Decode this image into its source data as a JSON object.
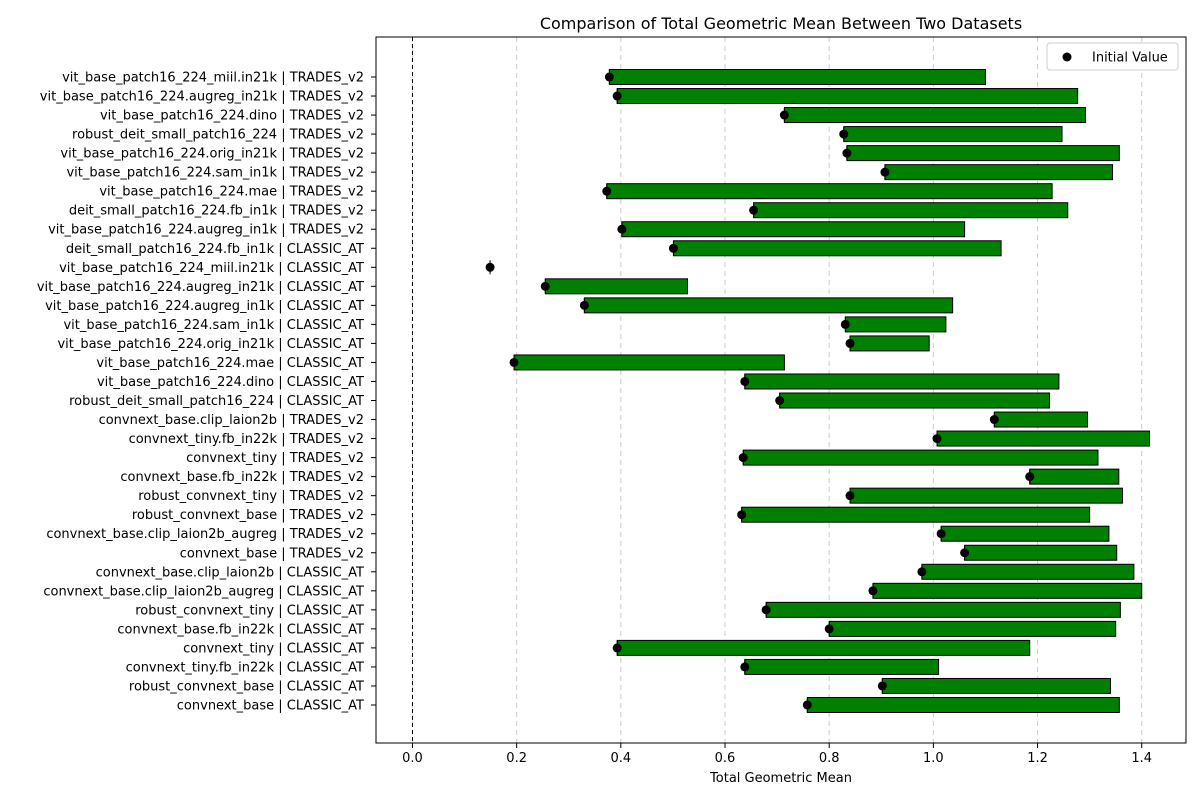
{
  "chart_data": {
    "type": "bar",
    "orientation": "horizontal",
    "title": "Comparison of Total Geometric Mean Between Two Datasets",
    "xlabel": "Total Geometric Mean",
    "ylabel": "",
    "xlim": [
      -0.07,
      1.485
    ],
    "xticks": [
      0.0,
      0.2,
      0.4,
      0.6,
      0.8,
      1.0,
      1.2,
      1.4
    ],
    "xtick_labels": [
      "0.0",
      "0.2",
      "0.4",
      "0.6",
      "0.8",
      "1.0",
      "1.2",
      "1.4"
    ],
    "grid": "x-dashed",
    "reference_line": 0.0,
    "legend": {
      "position": "top-right",
      "entries": [
        "Initial Value"
      ]
    },
    "bar_color": "#008000",
    "bar_edge_color": "#000000",
    "marker_color": "#000000",
    "categories": [
      "vit_base_patch16_224_miil.in21k | TRADES_v2",
      "vit_base_patch16_224.augreg_in21k | TRADES_v2",
      "vit_base_patch16_224.dino | TRADES_v2",
      "robust_deit_small_patch16_224 | TRADES_v2",
      "vit_base_patch16_224.orig_in21k | TRADES_v2",
      "vit_base_patch16_224.sam_in1k | TRADES_v2",
      "vit_base_patch16_224.mae | TRADES_v2",
      "deit_small_patch16_224.fb_in1k | TRADES_v2",
      "vit_base_patch16_224.augreg_in1k | TRADES_v2",
      "deit_small_patch16_224.fb_in1k | CLASSIC_AT",
      "vit_base_patch16_224_miil.in21k | CLASSIC_AT",
      "vit_base_patch16_224.augreg_in21k | CLASSIC_AT",
      "vit_base_patch16_224.augreg_in1k | CLASSIC_AT",
      "vit_base_patch16_224.sam_in1k | CLASSIC_AT",
      "vit_base_patch16_224.orig_in21k | CLASSIC_AT",
      "vit_base_patch16_224.mae | CLASSIC_AT",
      "vit_base_patch16_224.dino | CLASSIC_AT",
      "robust_deit_small_patch16_224 | CLASSIC_AT",
      "convnext_base.clip_laion2b | TRADES_v2",
      "convnext_tiny.fb_in22k | TRADES_v2",
      "convnext_tiny | TRADES_v2",
      "convnext_base.fb_in22k | TRADES_v2",
      "robust_convnext_tiny | TRADES_v2",
      "robust_convnext_base | TRADES_v2",
      "convnext_base.clip_laion2b_augreg | TRADES_v2",
      "convnext_base | TRADES_v2",
      "convnext_base.clip_laion2b | CLASSIC_AT",
      "convnext_base.clip_laion2b_augreg | CLASSIC_AT",
      "robust_convnext_tiny | CLASSIC_AT",
      "convnext_base.fb_in22k | CLASSIC_AT",
      "convnext_tiny | CLASSIC_AT",
      "convnext_tiny.fb_in22k | CLASSIC_AT",
      "robust_convnext_base | CLASSIC_AT",
      "convnext_base | CLASSIC_AT"
    ],
    "initial_values": [
      0.378,
      0.393,
      0.714,
      0.828,
      0.834,
      0.907,
      0.373,
      0.655,
      0.402,
      0.501,
      0.149,
      0.255,
      0.33,
      0.831,
      0.84,
      0.195,
      0.638,
      0.705,
      1.117,
      1.007,
      0.635,
      1.185,
      0.84,
      0.632,
      1.015,
      1.06,
      0.978,
      0.884,
      0.679,
      0.8,
      0.393,
      0.638,
      0.902,
      0.758
    ],
    "final_values": [
      1.1,
      1.277,
      1.292,
      1.247,
      1.357,
      1.344,
      1.228,
      1.258,
      1.06,
      1.13,
      0.149,
      0.528,
      1.037,
      1.024,
      0.992,
      0.714,
      1.241,
      1.223,
      1.296,
      1.415,
      1.316,
      1.356,
      1.363,
      1.3,
      1.337,
      1.352,
      1.385,
      1.4,
      1.359,
      1.35,
      1.185,
      1.01,
      1.34,
      1.357
    ]
  }
}
